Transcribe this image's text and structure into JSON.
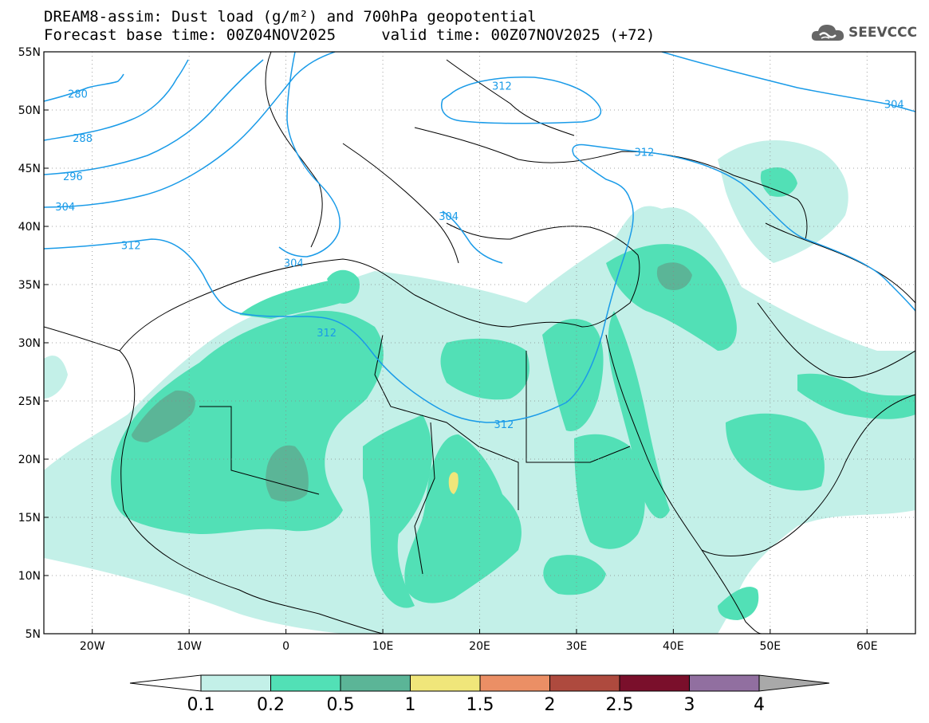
{
  "title": {
    "line1": "DREAM8-assim: Dust load (g/m²) and 700hPa geopotential",
    "line2": "Forecast base time: 00Z04NOV2025     valid time: 00Z07NOV2025 (+72)"
  },
  "logo": {
    "text": "SEEVCCC",
    "icon": "cloud-icon"
  },
  "map": {
    "lon_range": [
      -25,
      65
    ],
    "lat_range": [
      5,
      55
    ],
    "lon_ticks": [
      {
        "value": -20,
        "label": "20W"
      },
      {
        "value": -10,
        "label": "10W"
      },
      {
        "value": 0,
        "label": "0"
      },
      {
        "value": 10,
        "label": "10E"
      },
      {
        "value": 20,
        "label": "20E"
      },
      {
        "value": 30,
        "label": "30E"
      },
      {
        "value": 40,
        "label": "40E"
      },
      {
        "value": 50,
        "label": "50E"
      },
      {
        "value": 60,
        "label": "60E"
      }
    ],
    "lat_ticks": [
      {
        "value": 55,
        "label": "55N"
      },
      {
        "value": 50,
        "label": "50N"
      },
      {
        "value": 45,
        "label": "45N"
      },
      {
        "value": 40,
        "label": "40N"
      },
      {
        "value": 35,
        "label": "35N"
      },
      {
        "value": 30,
        "label": "30N"
      },
      {
        "value": 25,
        "label": "25N"
      },
      {
        "value": 20,
        "label": "20N"
      },
      {
        "value": 15,
        "label": "15N"
      },
      {
        "value": 10,
        "label": "10N"
      },
      {
        "value": 5,
        "label": "5N"
      }
    ],
    "contour_labels": [
      {
        "text": "280",
        "lon": -21.5,
        "lat": 51.4
      },
      {
        "text": "288",
        "lon": -21.0,
        "lat": 47.6
      },
      {
        "text": "296",
        "lon": -22.0,
        "lat": 44.3
      },
      {
        "text": "304",
        "lon": -22.8,
        "lat": 41.7
      },
      {
        "text": "312",
        "lon": -16.0,
        "lat": 38.4
      },
      {
        "text": "304",
        "lon": 0.8,
        "lat": 36.9
      },
      {
        "text": "304",
        "lon": 16.8,
        "lat": 40.9
      },
      {
        "text": "312",
        "lon": 4.2,
        "lat": 30.9
      },
      {
        "text": "312",
        "lon": 22.5,
        "lat": 23.0
      },
      {
        "text": "312",
        "lon": 22.3,
        "lat": 52.1
      },
      {
        "text": "312",
        "lon": 37.0,
        "lat": 46.4
      },
      {
        "text": "304",
        "lon": 62.8,
        "lat": 50.5
      }
    ]
  },
  "legend": {
    "labels": [
      "0.1",
      "0.2",
      "0.5",
      "1",
      "1.5",
      "2",
      "2.5",
      "3",
      "4"
    ],
    "colors": [
      "#c3f0e8",
      "#52e0b6",
      "#5bb597",
      "#f0e67a",
      "#eb8f65",
      "#ae4a3e",
      "#7a0f2b",
      "#916fa0",
      "#a9a9a9"
    ]
  },
  "colors": {
    "contour": "#1a9be8",
    "dust_low": "#c3f0e8",
    "dust_mid": "#52e0b6",
    "dust_high": "#5bb597",
    "dust_peak": "#f0e67a"
  }
}
